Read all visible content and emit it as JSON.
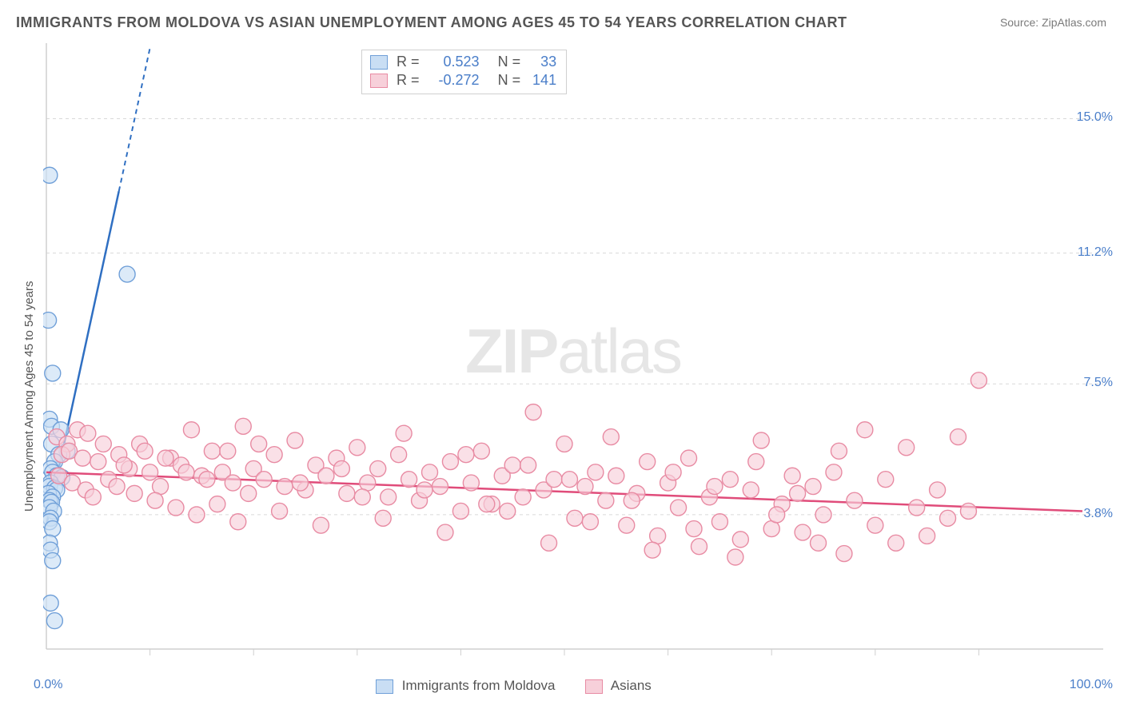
{
  "title": "IMMIGRANTS FROM MOLDOVA VS ASIAN UNEMPLOYMENT AMONG AGES 45 TO 54 YEARS CORRELATION CHART",
  "source": "Source: ZipAtlas.com",
  "y_axis_label": "Unemployment Among Ages 45 to 54 years",
  "watermark_bold": "ZIP",
  "watermark_light": "atlas",
  "x_axis": {
    "min_label": "0.0%",
    "max_label": "100.0%",
    "xlim": [
      0,
      100
    ]
  },
  "y_axis": {
    "ticks": [
      {
        "label": "15.0%",
        "value": 15.0
      },
      {
        "label": "11.2%",
        "value": 11.2
      },
      {
        "label": "7.5%",
        "value": 7.5
      },
      {
        "label": "3.8%",
        "value": 3.8
      }
    ],
    "ylim": [
      0,
      17
    ]
  },
  "grid_color": "#d9d9d9",
  "axis_color": "#cfcfcf",
  "background_color": "#ffffff",
  "series": [
    {
      "name": "Immigrants from Moldova",
      "color_fill": "#c9def4",
      "color_stroke": "#6f9fd8",
      "line_color": "#2f6fc2",
      "marker_radius": 10,
      "R": "0.523",
      "N": "33",
      "regression": {
        "x1": 0,
        "y1": 3.5,
        "x2": 10,
        "y2": 17,
        "dash_after_x": 7
      },
      "points": [
        [
          0.3,
          13.4
        ],
        [
          0.2,
          9.3
        ],
        [
          0.6,
          7.8
        ],
        [
          0.3,
          6.5
        ],
        [
          0.5,
          6.3
        ],
        [
          1.4,
          6.2
        ],
        [
          0.5,
          5.8
        ],
        [
          2.0,
          5.6
        ],
        [
          1.2,
          5.5
        ],
        [
          0.8,
          5.3
        ],
        [
          0.4,
          5.1
        ],
        [
          0.6,
          5.0
        ],
        [
          1.0,
          4.9
        ],
        [
          1.5,
          4.85
        ],
        [
          0.4,
          4.7
        ],
        [
          0.3,
          4.6
        ],
        [
          0.8,
          4.55
        ],
        [
          1.0,
          4.5
        ],
        [
          0.2,
          4.4
        ],
        [
          0.6,
          4.3
        ],
        [
          0.3,
          4.2
        ],
        [
          0.5,
          4.15
        ],
        [
          0.3,
          4.0
        ],
        [
          0.7,
          3.9
        ],
        [
          0.4,
          3.7
        ],
        [
          0.3,
          3.6
        ],
        [
          0.6,
          3.4
        ],
        [
          0.3,
          3.0
        ],
        [
          0.4,
          2.8
        ],
        [
          0.6,
          2.5
        ],
        [
          0.4,
          1.3
        ],
        [
          0.8,
          0.8
        ],
        [
          7.8,
          10.6
        ]
      ]
    },
    {
      "name": "Asians",
      "color_fill": "#f7d0da",
      "color_stroke": "#e88ba3",
      "line_color": "#e04c7a",
      "marker_radius": 10,
      "R": "-0.272",
      "N": "141",
      "regression": {
        "x1": 0,
        "y1": 5.0,
        "x2": 100,
        "y2": 3.9,
        "dash_after_x": 999
      },
      "points": [
        [
          1,
          6.0
        ],
        [
          2,
          5.8
        ],
        [
          3,
          6.2
        ],
        [
          1.5,
          5.5
        ],
        [
          2.2,
          5.6
        ],
        [
          3.5,
          5.4
        ],
        [
          4,
          6.1
        ],
        [
          5,
          5.3
        ],
        [
          6,
          4.8
        ],
        [
          7,
          5.5
        ],
        [
          8,
          5.1
        ],
        [
          9,
          5.8
        ],
        [
          10,
          5.0
        ],
        [
          11,
          4.6
        ],
        [
          12,
          5.4
        ],
        [
          13,
          5.2
        ],
        [
          14,
          6.2
        ],
        [
          15,
          4.9
        ],
        [
          16,
          5.6
        ],
        [
          17,
          5.0
        ],
        [
          18,
          4.7
        ],
        [
          19,
          6.3
        ],
        [
          20,
          5.1
        ],
        [
          21,
          4.8
        ],
        [
          22,
          5.5
        ],
        [
          23,
          4.6
        ],
        [
          24,
          5.9
        ],
        [
          25,
          4.5
        ],
        [
          26,
          5.2
        ],
        [
          27,
          4.9
        ],
        [
          28,
          5.4
        ],
        [
          29,
          4.4
        ],
        [
          30,
          5.7
        ],
        [
          31,
          4.7
        ],
        [
          32,
          5.1
        ],
        [
          33,
          4.3
        ],
        [
          34,
          5.5
        ],
        [
          35,
          4.8
        ],
        [
          36,
          4.2
        ],
        [
          37,
          5.0
        ],
        [
          38,
          4.6
        ],
        [
          39,
          5.3
        ],
        [
          40,
          3.9
        ],
        [
          41,
          4.7
        ],
        [
          42,
          5.6
        ],
        [
          43,
          4.1
        ],
        [
          44,
          4.9
        ],
        [
          45,
          5.2
        ],
        [
          46,
          4.3
        ],
        [
          47,
          6.7
        ],
        [
          48,
          4.5
        ],
        [
          49,
          4.8
        ],
        [
          50,
          5.8
        ],
        [
          51,
          3.7
        ],
        [
          52,
          4.6
        ],
        [
          53,
          5.0
        ],
        [
          54,
          4.2
        ],
        [
          55,
          4.9
        ],
        [
          56,
          3.5
        ],
        [
          57,
          4.4
        ],
        [
          58,
          5.3
        ],
        [
          59,
          3.2
        ],
        [
          60,
          4.7
        ],
        [
          61,
          4.0
        ],
        [
          62,
          5.4
        ],
        [
          63,
          2.9
        ],
        [
          64,
          4.3
        ],
        [
          65,
          3.6
        ],
        [
          66,
          4.8
        ],
        [
          67,
          3.1
        ],
        [
          68,
          4.5
        ],
        [
          69,
          5.9
        ],
        [
          70,
          3.4
        ],
        [
          71,
          4.1
        ],
        [
          72,
          4.9
        ],
        [
          73,
          3.3
        ],
        [
          74,
          4.6
        ],
        [
          75,
          3.8
        ],
        [
          76,
          5.0
        ],
        [
          77,
          2.7
        ],
        [
          78,
          4.2
        ],
        [
          79,
          6.2
        ],
        [
          80,
          3.5
        ],
        [
          81,
          4.8
        ],
        [
          82,
          3.0
        ],
        [
          83,
          5.7
        ],
        [
          84,
          4.0
        ],
        [
          85,
          3.2
        ],
        [
          86,
          4.5
        ],
        [
          87,
          3.7
        ],
        [
          88,
          6.0
        ],
        [
          89,
          3.9
        ],
        [
          90,
          7.6
        ],
        [
          1.2,
          4.9
        ],
        [
          2.5,
          4.7
        ],
        [
          3.8,
          4.5
        ],
        [
          4.5,
          4.3
        ],
        [
          5.5,
          5.8
        ],
        [
          6.8,
          4.6
        ],
        [
          7.5,
          5.2
        ],
        [
          8.5,
          4.4
        ],
        [
          9.5,
          5.6
        ],
        [
          10.5,
          4.2
        ],
        [
          11.5,
          5.4
        ],
        [
          12.5,
          4.0
        ],
        [
          13.5,
          5.0
        ],
        [
          14.5,
          3.8
        ],
        [
          15.5,
          4.8
        ],
        [
          16.5,
          4.1
        ],
        [
          17.5,
          5.6
        ],
        [
          18.5,
          3.6
        ],
        [
          19.5,
          4.4
        ],
        [
          20.5,
          5.8
        ],
        [
          22.5,
          3.9
        ],
        [
          24.5,
          4.7
        ],
        [
          26.5,
          3.5
        ],
        [
          28.5,
          5.1
        ],
        [
          30.5,
          4.3
        ],
        [
          32.5,
          3.7
        ],
        [
          34.5,
          6.1
        ],
        [
          36.5,
          4.5
        ],
        [
          38.5,
          3.3
        ],
        [
          40.5,
          5.5
        ],
        [
          42.5,
          4.1
        ],
        [
          44.5,
          3.9
        ],
        [
          46.5,
          5.2
        ],
        [
          48.5,
          3.0
        ],
        [
          50.5,
          4.8
        ],
        [
          52.5,
          3.6
        ],
        [
          54.5,
          6.0
        ],
        [
          56.5,
          4.2
        ],
        [
          58.5,
          2.8
        ],
        [
          60.5,
          5.0
        ],
        [
          62.5,
          3.4
        ],
        [
          64.5,
          4.6
        ],
        [
          66.5,
          2.6
        ],
        [
          68.5,
          5.3
        ],
        [
          70.5,
          3.8
        ],
        [
          72.5,
          4.4
        ],
        [
          74.5,
          3.0
        ],
        [
          76.5,
          5.6
        ]
      ]
    }
  ],
  "legend_corr": {
    "labels": {
      "R": "R  =",
      "N": "N  ="
    }
  },
  "bottom_legend_labels": [
    "Immigrants from Moldova",
    "Asians"
  ]
}
